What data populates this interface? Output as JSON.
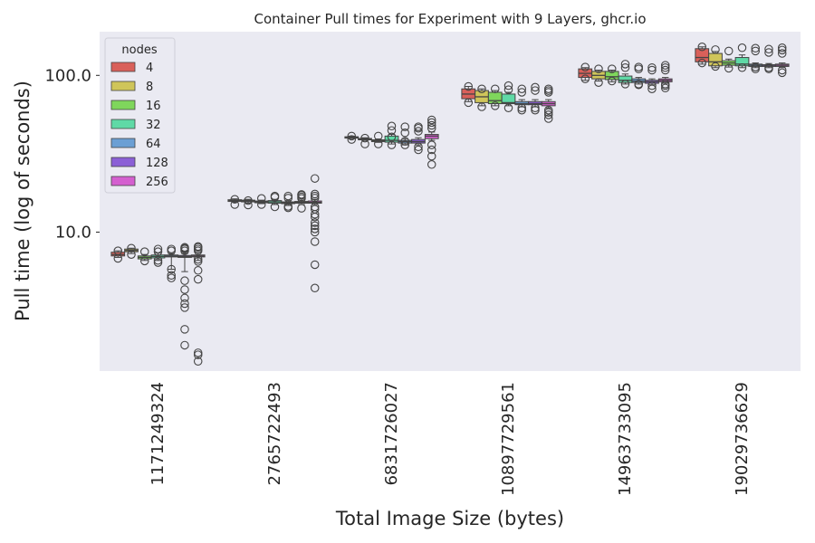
{
  "chart_data": {
    "type": "box",
    "title": "Container Pull times for Experiment with 9 Layers, ghcr.io",
    "xlabel": "Total Image Size (bytes)",
    "ylabel": "Pull time (log of seconds)",
    "yscale": "log",
    "ylim": [
      1.3,
      190
    ],
    "yticks": [
      10,
      100
    ],
    "ytick_labels": [
      "10.0",
      "100.0"
    ],
    "grid": false,
    "legend": {
      "title": "nodes",
      "placement": "top-left",
      "entries": [
        "4",
        "8",
        "16",
        "32",
        "64",
        "128",
        "256"
      ]
    },
    "colors": [
      "#d9605a",
      "#cfc55a",
      "#7fd65c",
      "#5fd9a6",
      "#6b9fd4",
      "#8b5fd6",
      "#d45fcf"
    ],
    "categories": [
      "1171249324",
      "2765722493",
      "6831726027",
      "10897729561",
      "14963733095",
      "19029736629"
    ],
    "series": [
      {
        "name": "4",
        "boxes": [
          {
            "q1": 7.05,
            "med": 7.2,
            "q3": 7.45,
            "wlo": 6.9,
            "whi": 7.6,
            "fliers": [
              6.8,
              7.6
            ]
          },
          {
            "q1": 15.7,
            "med": 15.9,
            "q3": 16.1,
            "wlo": 15.5,
            "whi": 16.3,
            "fliers": [
              15.0,
              16.2
            ]
          },
          {
            "q1": 39.8,
            "med": 40.2,
            "q3": 40.6,
            "wlo": 39.5,
            "whi": 41.0,
            "fliers": [
              39.0,
              41.0
            ]
          },
          {
            "q1": 71,
            "med": 76,
            "q3": 82,
            "wlo": 68,
            "whi": 85,
            "fliers": [
              67,
              85
            ]
          },
          {
            "q1": 97,
            "med": 103,
            "q3": 110,
            "wlo": 93,
            "whi": 112,
            "fliers": [
              95,
              113
            ]
          },
          {
            "q1": 122,
            "med": 130,
            "q3": 148,
            "wlo": 118,
            "whi": 152,
            "fliers": [
              120,
              152
            ]
          }
        ]
      },
      {
        "name": "8",
        "boxes": [
          {
            "q1": 7.5,
            "med": 7.65,
            "q3": 7.8,
            "wlo": 7.3,
            "whi": 7.9,
            "fliers": [
              7.2,
              7.9
            ]
          },
          {
            "q1": 15.6,
            "med": 15.8,
            "q3": 16.0,
            "wlo": 15.3,
            "whi": 16.2,
            "fliers": [
              14.9,
              15.9
            ]
          },
          {
            "q1": 38.8,
            "med": 39.2,
            "q3": 39.6,
            "wlo": 38.5,
            "whi": 40.0,
            "fliers": [
              36.5,
              39.8
            ]
          },
          {
            "q1": 67,
            "med": 73,
            "q3": 80,
            "wlo": 64,
            "whi": 82,
            "fliers": [
              63,
              82
            ]
          },
          {
            "q1": 95,
            "med": 100,
            "q3": 106,
            "wlo": 92,
            "whi": 108,
            "fliers": [
              90,
              110
            ]
          },
          {
            "q1": 115,
            "med": 122,
            "q3": 138,
            "wlo": 112,
            "whi": 142,
            "fliers": [
              114,
              146
            ]
          }
        ]
      },
      {
        "name": "16",
        "boxes": [
          {
            "q1": 6.75,
            "med": 6.9,
            "q3": 7.05,
            "wlo": 6.6,
            "whi": 7.2,
            "fliers": [
              6.55,
              7.5
            ]
          },
          {
            "q1": 15.4,
            "med": 15.6,
            "q3": 15.8,
            "wlo": 15.2,
            "whi": 16.0,
            "fliers": [
              15.0,
              16.4
            ]
          },
          {
            "q1": 37.8,
            "med": 38.2,
            "q3": 38.8,
            "wlo": 37.4,
            "whi": 39.3,
            "fliers": [
              36.5,
              41.0
            ]
          },
          {
            "q1": 66,
            "med": 69,
            "q3": 78,
            "wlo": 64,
            "whi": 80,
            "fliers": [
              64,
              82
            ]
          },
          {
            "q1": 94,
            "med": 98,
            "q3": 106,
            "wlo": 91,
            "whi": 108,
            "fliers": [
              92,
              110
            ]
          },
          {
            "q1": 116,
            "med": 120,
            "q3": 124,
            "wlo": 113,
            "whi": 127,
            "fliers": [
              111,
              143
            ]
          }
        ]
      },
      {
        "name": "32",
        "boxes": [
          {
            "q1": 6.85,
            "med": 7.0,
            "q3": 7.15,
            "wlo": 6.6,
            "whi": 7.35,
            "fliers": [
              6.4,
              6.6,
              7.5,
              7.8
            ]
          },
          {
            "q1": 15.3,
            "med": 15.6,
            "q3": 15.9,
            "wlo": 15.0,
            "whi": 16.2,
            "fliers": [
              14.5,
              16.7,
              17.0
            ]
          },
          {
            "q1": 37.5,
            "med": 38.5,
            "q3": 41.0,
            "wlo": 36.5,
            "whi": 42.0,
            "fliers": [
              36.0,
              40.5,
              44.5,
              47.5
            ]
          },
          {
            "q1": 66,
            "med": 67,
            "q3": 76,
            "wlo": 64,
            "whi": 78,
            "fliers": [
              62,
              81,
              86
            ]
          },
          {
            "q1": 90,
            "med": 93,
            "q3": 99,
            "wlo": 88,
            "whi": 102,
            "fliers": [
              88,
              112,
              118
            ]
          },
          {
            "q1": 115,
            "med": 118,
            "q3": 130,
            "wlo": 112,
            "whi": 135,
            "fliers": [
              112,
              150
            ]
          }
        ]
      },
      {
        "name": "64",
        "boxes": [
          {
            "q1": 6.95,
            "med": 7.05,
            "q3": 7.15,
            "wlo": 5.8,
            "whi": 7.3,
            "fliers": [
              5.1,
              5.3,
              5.8,
              7.6,
              7.8
            ]
          },
          {
            "q1": 15.2,
            "med": 15.4,
            "q3": 15.6,
            "wlo": 14.8,
            "whi": 15.9,
            "fliers": [
              14.3,
              14.6,
              16.5,
              17.0
            ]
          },
          {
            "q1": 37.0,
            "med": 37.8,
            "q3": 38.5,
            "wlo": 36.0,
            "whi": 39.5,
            "fliers": [
              36.0,
              38.0,
              43.0,
              47.0
            ]
          },
          {
            "q1": 65,
            "med": 66,
            "q3": 68,
            "wlo": 63,
            "whi": 70,
            "fliers": [
              60,
              62,
              78,
              82
            ]
          },
          {
            "q1": 90,
            "med": 92,
            "q3": 95,
            "wlo": 88,
            "whi": 97,
            "fliers": [
              87,
              88,
              110,
              113
            ]
          },
          {
            "q1": 114,
            "med": 116,
            "q3": 118,
            "wlo": 112,
            "whi": 120,
            "fliers": [
              110,
              113,
              143,
              149
            ]
          }
        ]
      },
      {
        "name": "128",
        "boxes": [
          {
            "q1": 6.9,
            "med": 7.0,
            "q3": 7.1,
            "wlo": 5.6,
            "whi": 7.3,
            "fliers": [
              1.9,
              2.4,
              3.3,
              3.5,
              3.8,
              4.3,
              4.9,
              7.6,
              7.8,
              7.9,
              8.0
            ]
          },
          {
            "q1": 15.3,
            "med": 15.5,
            "q3": 15.7,
            "wlo": 15.0,
            "whi": 16.0,
            "fliers": [
              14.2,
              16.4,
              16.8,
              17.2,
              17.4
            ]
          },
          {
            "q1": 37.0,
            "med": 37.8,
            "q3": 39.0,
            "wlo": 36.0,
            "whi": 40.0,
            "fliers": [
              33.5,
              35.0,
              44.0,
              46.0,
              47.0
            ]
          },
          {
            "q1": 65,
            "med": 66,
            "q3": 68,
            "wlo": 63,
            "whi": 70,
            "fliers": [
              60,
              62,
              80,
              84
            ]
          },
          {
            "q1": 89,
            "med": 91,
            "q3": 93,
            "wlo": 87,
            "whi": 95,
            "fliers": [
              82,
              86,
              108,
              112
            ]
          },
          {
            "q1": 114,
            "med": 116,
            "q3": 117,
            "wlo": 112,
            "whi": 119,
            "fliers": [
              110,
              112,
              140,
              147
            ]
          }
        ]
      },
      {
        "name": "256",
        "boxes": [
          {
            "q1": 6.95,
            "med": 7.05,
            "q3": 7.15,
            "wlo": 6.6,
            "whi": 7.4,
            "fliers": [
              1.5,
              1.65,
              1.7,
              5.0,
              5.7,
              6.5,
              6.7,
              7.6,
              7.8,
              8.0,
              8.1
            ]
          },
          {
            "q1": 15.3,
            "med": 15.5,
            "q3": 15.8,
            "wlo": 15.0,
            "whi": 16.2,
            "fliers": [
              4.4,
              6.2,
              8.7,
              10.0,
              10.5,
              11.0,
              11.5,
              12.5,
              13.0,
              14.0,
              14.5,
              16.5,
              17.0,
              17.5,
              22.0
            ]
          },
          {
            "q1": 39.5,
            "med": 41.0,
            "q3": 42.0,
            "wlo": 38.5,
            "whi": 43.5,
            "fliers": [
              27.0,
              30.5,
              33.5,
              36.0,
              46.0,
              48.0,
              50.0,
              52.0
            ]
          },
          {
            "q1": 64,
            "med": 66,
            "q3": 68,
            "wlo": 62,
            "whi": 70,
            "fliers": [
              53,
              56,
              58,
              60,
              78,
              80,
              82
            ]
          },
          {
            "q1": 91,
            "med": 93,
            "q3": 95,
            "wlo": 89,
            "whi": 97,
            "fliers": [
              83,
              86,
              88,
              108,
              112,
              116
            ]
          },
          {
            "q1": 114,
            "med": 116,
            "q3": 118,
            "wlo": 112,
            "whi": 120,
            "fliers": [
              104,
              108,
              138,
              145,
              150
            ]
          }
        ]
      }
    ]
  }
}
